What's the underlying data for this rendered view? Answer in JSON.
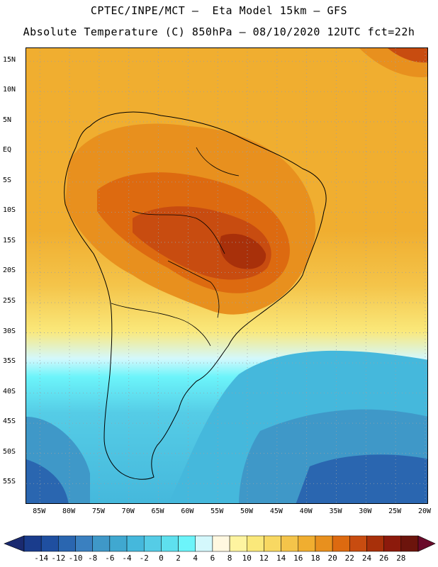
{
  "title": {
    "line1": "CPTEC/INPE/MCT –  Eta Model 15km – GFS",
    "line2": "Absolute Temperature (C) 850hPa – 08/10/2020 12UTC fct=22h"
  },
  "map": {
    "lat_ticks": [
      "15N",
      "10N",
      "5N",
      "EQ",
      "5S",
      "10S",
      "15S",
      "20S",
      "25S",
      "30S",
      "35S",
      "40S",
      "45S",
      "50S",
      "55S"
    ],
    "lon_ticks": [
      "85W",
      "80W",
      "75W",
      "70W",
      "65W",
      "60W",
      "55W",
      "50W",
      "45W",
      "40W",
      "35W",
      "30W",
      "25W",
      "20W"
    ],
    "lat_values": [
      15,
      10,
      5,
      0,
      -5,
      -10,
      -15,
      -20,
      -25,
      -30,
      -35,
      -40,
      -45,
      -50,
      -55
    ],
    "lon_values": [
      -85,
      -80,
      -75,
      -70,
      -65,
      -60,
      -55,
      -50,
      -45,
      -40,
      -35,
      -30,
      -25,
      -20
    ]
  },
  "colorbar": {
    "labels": [
      "-14",
      "-12",
      "-10",
      "-8",
      "-6",
      "-4",
      "-2",
      "0",
      "2",
      "4",
      "6",
      "8",
      "10",
      "12",
      "14",
      "16",
      "18",
      "20",
      "22",
      "24",
      "26",
      "28"
    ],
    "colors": [
      "#1a3c8c",
      "#1f4fa0",
      "#2a66b0",
      "#3a80c0",
      "#3f98c8",
      "#40a8d0",
      "#45b8dc",
      "#55cce6",
      "#5ee0ee",
      "#6cf4fa",
      "#d4f8fc",
      "#fff8e0",
      "#fef4a0",
      "#fae87a",
      "#f8d862",
      "#f4c44a",
      "#f0ae30",
      "#e8901e",
      "#dd6a10",
      "#c84c10",
      "#a8300a",
      "#8c1a0c",
      "#6c140c"
    ],
    "low_arrow_color": "#1a2a70",
    "high_arrow_color": "#6a0a2a"
  }
}
